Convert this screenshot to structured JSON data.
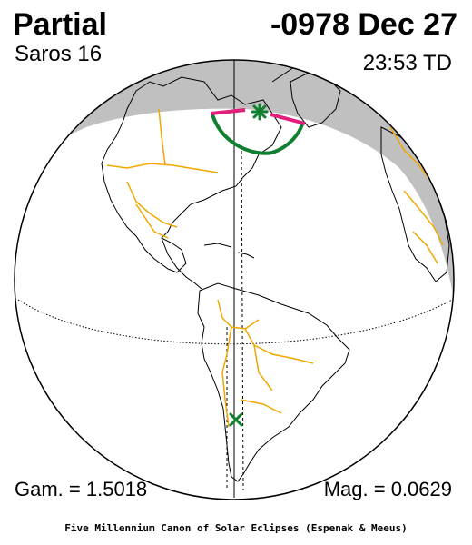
{
  "header": {
    "eclipse_type": "Partial",
    "date": "-0978 Dec 27",
    "saros": "Saros  16",
    "time": "23:53 TD"
  },
  "footer_stats": {
    "gamma": "Gam. = 1.5018",
    "magnitude": "Mag. = 0.0629"
  },
  "credit": "Five Millennium Canon of Solar Eclipses (Espenak & Meeus)",
  "colors": {
    "penumbra_shade": "#c0c0c0",
    "borders": "#f0a800",
    "eclipse_curve": "#108030",
    "limit_line": "#e0207a",
    "coastline": "#000000"
  },
  "icons": {
    "greatest_eclipse": "asterisk-marker",
    "sub_solar_point": "cross-marker"
  }
}
